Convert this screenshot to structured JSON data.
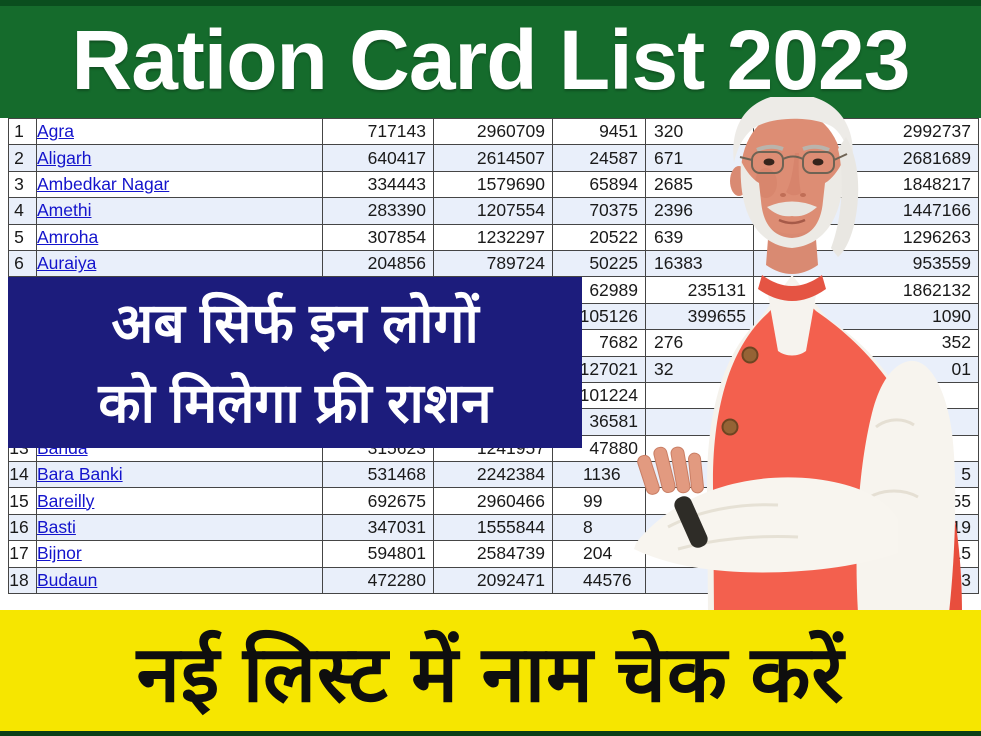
{
  "header": {
    "title": "Ration Card List 2023"
  },
  "overlay": {
    "line1": "अब सिर्फ इन लोगों",
    "line2": "को मिलेगा फ्री राशन"
  },
  "banner": {
    "text": "नई लिस्ट में नाम चेक करें"
  },
  "photo": {
    "name": "modi-photo",
    "alt": "Narendra Modi"
  },
  "colors": {
    "header_green": "#156b2c",
    "bottom_strip_green": "#0c3f18",
    "overlay_blue": "#1c1c7c",
    "banner_yellow": "#f6e600",
    "link_blue": "#1414cc",
    "row_alt_blue": "#e9effa",
    "table_border": "#454545",
    "vest_coral": "#f3604e"
  },
  "table": {
    "rows": [
      {
        "sn": "1",
        "district": "Agra",
        "c1": "717143",
        "c2": "2960709",
        "c3": "9451",
        "c4": "320",
        "c5": "2992737",
        "partial": [
          "c4"
        ]
      },
      {
        "sn": "2",
        "district": "Aligarh",
        "c1": "640417",
        "c2": "2614507",
        "c3": "24587",
        "c4": "671",
        "c5": "2681689",
        "partial": [
          "c4"
        ]
      },
      {
        "sn": "3",
        "district": "Ambedkar Nagar",
        "c1": "334443",
        "c2": "1579690",
        "c3": "65894",
        "c4": "2685",
        "c5": "1848217",
        "partial": [
          "c4"
        ]
      },
      {
        "sn": "4",
        "district": "Amethi",
        "c1": "283390",
        "c2": "1207554",
        "c3": "70375",
        "c4": "2396",
        "c5": "1447166",
        "partial": [
          "c4"
        ]
      },
      {
        "sn": "5",
        "district": "Amroha",
        "c1": "307854",
        "c2": "1232297",
        "c3": "20522",
        "c4": "639",
        "c5": "1296263",
        "partial": [
          "c4"
        ]
      },
      {
        "sn": "6",
        "district": "Auraiya",
        "c1": "204856",
        "c2": "789724",
        "c3": "50225",
        "c4": "16383",
        "c5": "953559",
        "partial": [
          "c4"
        ]
      },
      {
        "sn": "",
        "district": "",
        "c1": "",
        "c2": "",
        "c3": "62989",
        "c4": "235131",
        "c5": "1862132",
        "partial": []
      },
      {
        "sn": "",
        "district": "",
        "c1": "",
        "c2": "",
        "c3": "105126",
        "c4": "399655",
        "c5": "1090",
        "partial": []
      },
      {
        "sn": "",
        "district": "",
        "c1": "",
        "c2": "",
        "c3": "7682",
        "c4": "276",
        "c5": "352",
        "partial": [
          "c4"
        ]
      },
      {
        "sn": "",
        "district": "",
        "c1": "",
        "c2": "",
        "c3": "127021",
        "c4": "32",
        "c5": "01",
        "partial": [
          "c4"
        ]
      },
      {
        "sn": "",
        "district": "",
        "c1": "",
        "c2": "",
        "c3": "101224",
        "c4": "",
        "c5": "",
        "partial": []
      },
      {
        "sn": "",
        "district": "",
        "c1": "",
        "c2": "",
        "c3": "36581",
        "c4": "",
        "c5": "",
        "partial": []
      },
      {
        "sn": "13",
        "district": "Banda",
        "c1": "315623",
        "c2": "1241957",
        "c3": "47880",
        "c4": "",
        "c5": "",
        "partial": []
      },
      {
        "sn": "14",
        "district": "Bara Banki",
        "c1": "531468",
        "c2": "2242384",
        "c3": "1136",
        "c4": "",
        "c5": "5",
        "partial": [
          "c3"
        ]
      },
      {
        "sn": "15",
        "district": "Bareilly",
        "c1": "692675",
        "c2": "2960466",
        "c3": "99",
        "c4": "",
        "c5": "55",
        "partial": [
          "c3"
        ]
      },
      {
        "sn": "16",
        "district": "Basti",
        "c1": "347031",
        "c2": "1555844",
        "c3": "8",
        "c4": "",
        "c5": "19",
        "partial": [
          "c3"
        ]
      },
      {
        "sn": "17",
        "district": "Bijnor",
        "c1": "594801",
        "c2": "2584739",
        "c3": "204",
        "c4": "",
        "c5": "315",
        "partial": [
          "c3"
        ]
      },
      {
        "sn": "18",
        "district": "Budaun",
        "c1": "472280",
        "c2": "2092471",
        "c3": "44576",
        "c4": "",
        "c5": "343",
        "partial": [
          "c3"
        ]
      }
    ]
  }
}
